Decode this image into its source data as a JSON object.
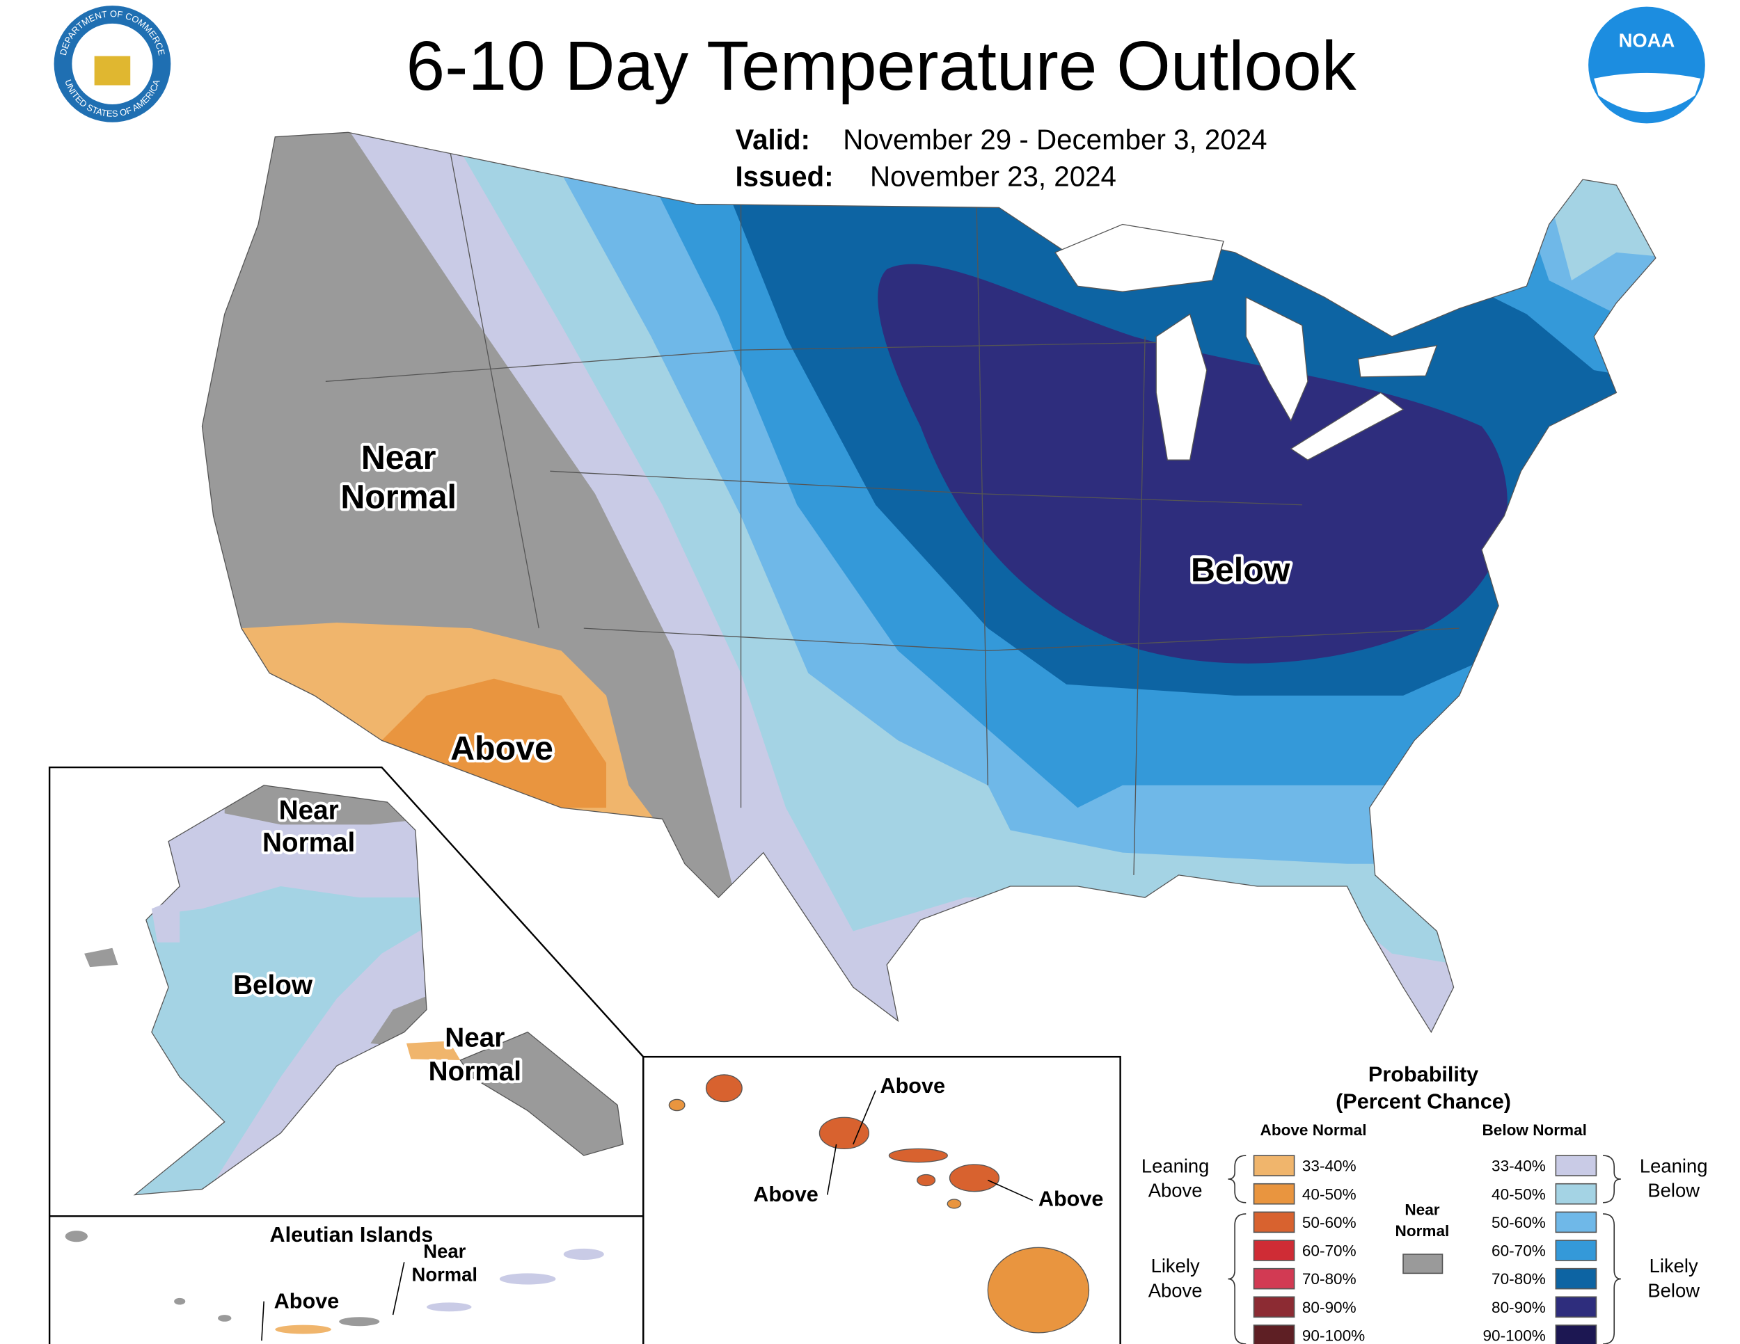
{
  "header": {
    "title": "6-10 Day Temperature Outlook",
    "valid_label": "Valid:",
    "valid_value": "November 29 - December 3, 2024",
    "issued_label": "Issued:",
    "issued_value": "November 23, 2024",
    "noaa_logo": "NOAA",
    "seal_top": "DEPARTMENT OF COMMERCE",
    "seal_bottom": "UNITED STATES OF AMERICA"
  },
  "map_labels": {
    "conus_near_normal": [
      "Near",
      "Normal"
    ],
    "conus_above": "Above",
    "conus_below": "Below",
    "alaska_near_normal_north": [
      "Near",
      "Normal"
    ],
    "alaska_below": "Below",
    "alaska_near_normal_south": [
      "Near",
      "Normal"
    ],
    "aleutian_title": "Aleutian Islands",
    "aleutian_near_normal": [
      "Near",
      "Normal"
    ],
    "aleutian_above": "Above",
    "hawaii_above": [
      "Above",
      "Above",
      "Above"
    ]
  },
  "legend": {
    "title": "Probability",
    "subtitle": "(Percent Chance)",
    "above_header": "Above Normal",
    "below_header": "Below Normal",
    "near_normal": [
      "Near",
      "Normal"
    ],
    "near_normal_color": "#9a9a9a",
    "leaning_above": [
      "Leaning",
      "Above"
    ],
    "likely_above": [
      "Likely",
      "Above"
    ],
    "leaning_below": [
      "Leaning",
      "Below"
    ],
    "likely_below": [
      "Likely",
      "Below"
    ],
    "above": [
      {
        "label": "33-40%",
        "color": "#f0b56c"
      },
      {
        "label": "40-50%",
        "color": "#e9953f"
      },
      {
        "label": "50-60%",
        "color": "#d8622f"
      },
      {
        "label": "60-70%",
        "color": "#cf2c35"
      },
      {
        "label": "70-80%",
        "color": "#d23a53"
      },
      {
        "label": "80-90%",
        "color": "#8c2b33"
      },
      {
        "label": "90-100%",
        "color": "#5e1f24"
      }
    ],
    "below": [
      {
        "label": "33-40%",
        "color": "#c9cbe6"
      },
      {
        "label": "40-50%",
        "color": "#a4d3e4"
      },
      {
        "label": "50-60%",
        "color": "#6fb8e8"
      },
      {
        "label": "60-70%",
        "color": "#3499d9"
      },
      {
        "label": "70-80%",
        "color": "#0d64a3"
      },
      {
        "label": "80-90%",
        "color": "#2e2d7d"
      },
      {
        "label": "90-100%",
        "color": "#1c1752"
      }
    ]
  }
}
